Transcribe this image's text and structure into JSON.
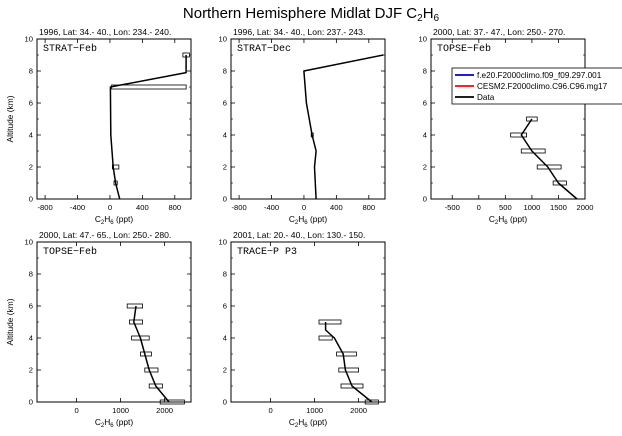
{
  "figure": {
    "title": "Northern Hemisphere Midlat DJF C",
    "title_sub": "2",
    "title_mid": "H",
    "title_sub2": "6"
  },
  "legend": {
    "panel": 2,
    "placement": "top-right",
    "entries": [
      {
        "label": "f.e20.F2000climo.f09_f09.297.001",
        "color": "#0000cc"
      },
      {
        "label": "CESM2.F2000climo.C96.C96.mg17",
        "color": "#ff0000"
      },
      {
        "label": "Data",
        "color": "#000000"
      }
    ]
  },
  "chart_data": [
    {
      "type": "line",
      "header": "1996, Lat: 34.- 40., Lon: 234.- 240.",
      "label": "STRAT−Feb",
      "xlabel": "C2H6 (ppt)",
      "ylabel": "Altitude (km)",
      "xlim": [
        -900,
        1000
      ],
      "ylim": [
        0,
        10
      ],
      "xticks": [
        -800,
        -400,
        0,
        400,
        800
      ],
      "yticks": [
        0,
        2,
        4,
        6,
        8,
        10
      ],
      "series": [
        {
          "x": [
            120,
            70,
            40,
            10,
            5,
            940,
            940
          ],
          "y": [
            0,
            1,
            2,
            4,
            7,
            7.9,
            9
          ]
        }
      ],
      "boxes": [
        {
          "y": 9.0,
          "xmin": 900,
          "xmax": 980
        },
        {
          "y": 7.0,
          "xmin": 20,
          "xmax": 940
        },
        {
          "y": 2.0,
          "xmin": 30,
          "xmax": 110
        },
        {
          "y": 1.0,
          "xmin": 50,
          "xmax": 90
        }
      ]
    },
    {
      "type": "line",
      "header": "1996, Lat: 34.- 40., Lon: 237.- 243.",
      "label": "STRAT−Dec",
      "xlabel": "C2H6 (ppt)",
      "ylabel": "",
      "xlim": [
        -900,
        1000
      ],
      "ylim": [
        0,
        10
      ],
      "xticks": [
        -800,
        -400,
        0,
        400,
        800
      ],
      "yticks": [
        0,
        2,
        4,
        6,
        8,
        10
      ],
      "series": [
        {
          "x": [
            150,
            130,
            150,
            100,
            30,
            0,
            980
          ],
          "y": [
            0,
            2,
            3,
            4,
            6,
            8,
            9
          ]
        }
      ],
      "boxes": [
        {
          "y": 4.0,
          "xmin": 90,
          "xmax": 110
        }
      ]
    },
    {
      "type": "line",
      "header": "2000, Lat: 37.- 47., Lon: 250.- 270.",
      "label": "TOPSE−Feb",
      "xlabel": "C2H6 (ppt)",
      "ylabel": "",
      "xlim": [
        -900,
        2000
      ],
      "ylim": [
        0,
        10
      ],
      "xticks": [
        -500,
        0,
        500,
        1000,
        1500,
        2000
      ],
      "yticks": [
        0,
        2,
        4,
        6,
        8,
        10
      ],
      "series": [
        {
          "x": [
            1850,
            1500,
            1300,
            1000,
            800,
            1000
          ],
          "y": [
            0,
            1,
            2,
            3,
            4,
            5
          ]
        }
      ],
      "boxes": [
        {
          "y": 5.0,
          "xmin": 900,
          "xmax": 1100
        },
        {
          "y": 4.0,
          "xmin": 600,
          "xmax": 900
        },
        {
          "y": 3.0,
          "xmin": 800,
          "xmax": 1250
        },
        {
          "y": 2.0,
          "xmin": 1100,
          "xmax": 1550
        },
        {
          "y": 1.0,
          "xmin": 1400,
          "xmax": 1650
        }
      ]
    },
    {
      "type": "line",
      "header": "2000, Lat: 47.- 65., Lon: 250.- 280.",
      "label": "TOPSE−Feb",
      "xlabel": "C2H6 (ppt)",
      "ylabel": "Altitude (km)",
      "xlim": [
        -900,
        2600
      ],
      "ylim": [
        0,
        10
      ],
      "xticks": [
        0,
        1000,
        2000
      ],
      "yticks": [
        0,
        2,
        4,
        6,
        8,
        10
      ],
      "series": [
        {
          "x": [
            2100,
            1800,
            1650,
            1550,
            1450,
            1300,
            1350
          ],
          "y": [
            0,
            1,
            2,
            3,
            4,
            5,
            6
          ]
        }
      ],
      "boxes": [
        {
          "y": 6.0,
          "xmin": 1150,
          "xmax": 1500
        },
        {
          "y": 5.0,
          "xmin": 1200,
          "xmax": 1500
        },
        {
          "y": 4.0,
          "xmin": 1250,
          "xmax": 1650
        },
        {
          "y": 3.0,
          "xmin": 1450,
          "xmax": 1700
        },
        {
          "y": 2.0,
          "xmin": 1550,
          "xmax": 1850
        },
        {
          "y": 1.0,
          "xmin": 1650,
          "xmax": 1950
        },
        {
          "y": 0.0,
          "xmin": 1900,
          "xmax": 2450
        }
      ]
    },
    {
      "type": "line",
      "header": "2001, Lat: 20.- 40., Lon: 130.- 150.",
      "label": "TRACE−P P3",
      "xlabel": "C2H6 (ppt)",
      "ylabel": "",
      "xlim": [
        -900,
        2600
      ],
      "ylim": [
        0,
        10
      ],
      "xticks": [
        0,
        1000,
        2000
      ],
      "yticks": [
        0,
        2,
        4,
        6,
        8,
        10
      ],
      "series": [
        {
          "x": [
            2300,
            1850,
            1700,
            1650,
            1450,
            1250,
            1250
          ],
          "y": [
            0,
            1,
            2,
            3,
            4,
            4.5,
            5
          ]
        }
      ],
      "boxes": [
        {
          "y": 5.0,
          "xmin": 1100,
          "xmax": 1600
        },
        {
          "y": 4.0,
          "xmin": 1100,
          "xmax": 1400
        },
        {
          "y": 3.0,
          "xmin": 1500,
          "xmax": 1950
        },
        {
          "y": 2.0,
          "xmin": 1550,
          "xmax": 2000
        },
        {
          "y": 1.0,
          "xmin": 1600,
          "xmax": 2100
        },
        {
          "y": 0.0,
          "xmin": 2150,
          "xmax": 2450
        }
      ]
    }
  ]
}
